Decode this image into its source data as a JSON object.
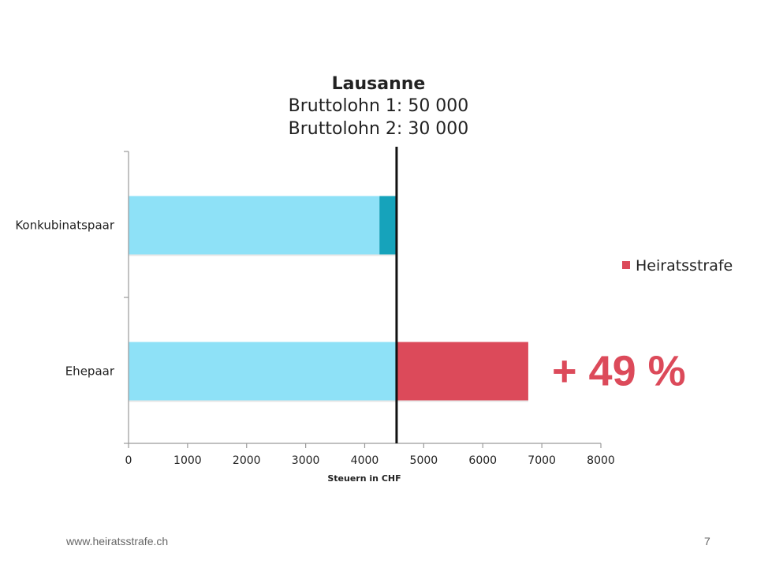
{
  "chart_data": {
    "type": "bar",
    "orientation": "horizontal",
    "stacked": true,
    "title_lines": [
      "Lausanne",
      "Bruttolohn 1: 50 000",
      "Bruttolohn 2: 30 000"
    ],
    "categories": [
      "Konkubinatspaar",
      "Ehepaar"
    ],
    "xlabel": "Steuern in CHF",
    "ylabel": "",
    "xlim": [
      0,
      8000
    ],
    "x_ticks": [
      0,
      1000,
      2000,
      3000,
      4000,
      5000,
      6000,
      7000,
      8000
    ],
    "grid": false,
    "series": [
      {
        "values": [
          4250,
          4540
        ],
        "color": "#8ee1f7"
      },
      {
        "values": [
          290,
          0
        ],
        "color": "#16a3bb"
      },
      {
        "name": "Heiratsstrafe",
        "values": [
          0,
          2230
        ],
        "color": "#dc4a5a"
      }
    ],
    "reference_line": {
      "x": 4540,
      "color": "#111111"
    },
    "legend": {
      "placement": "right",
      "entries": [
        "Heiratsstrafe"
      ]
    },
    "annotations": [
      {
        "text": "+ 49 %",
        "category": "Ehepaar",
        "color": "#dc4a5a"
      }
    ]
  },
  "footer": {
    "url": "www.heiratsstrafe.ch",
    "page_number": "7"
  }
}
